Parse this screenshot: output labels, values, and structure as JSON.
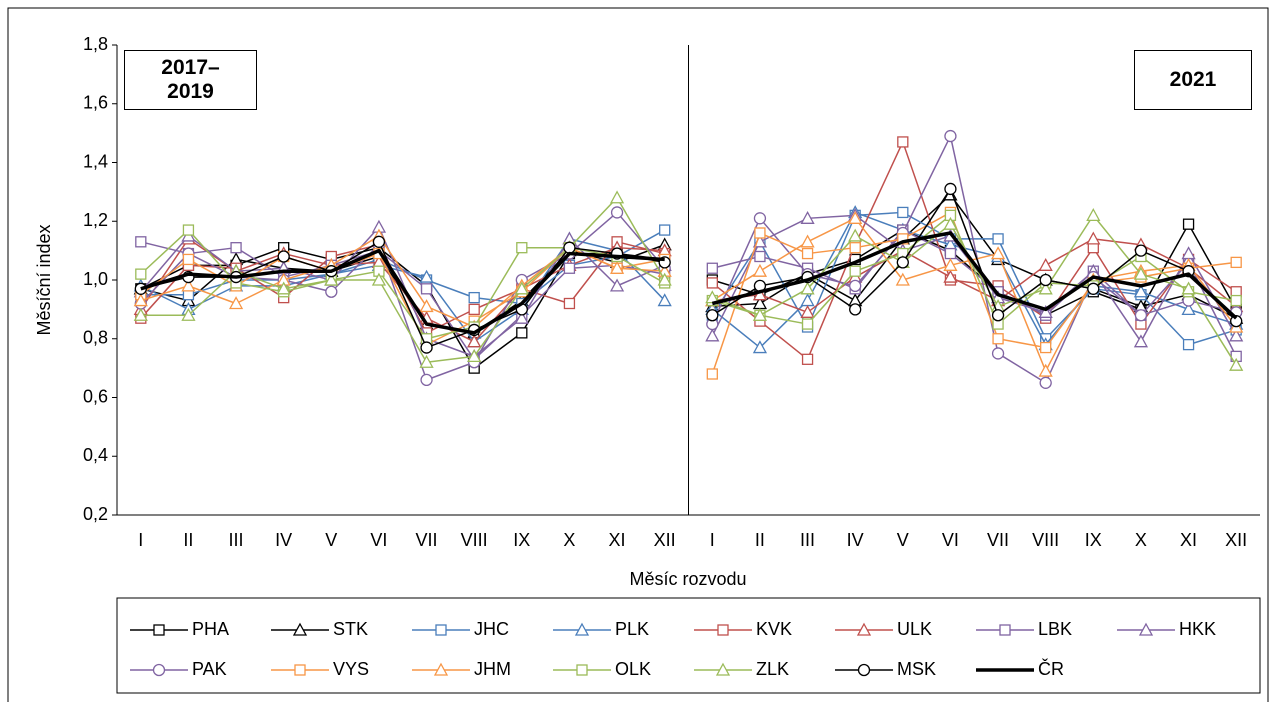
{
  "chart_data": {
    "type": "line",
    "y_label": "Měsíční index",
    "x_label": "Měsíc rozvodu",
    "annotations": [
      "2017–2019",
      "2021"
    ],
    "categories": [
      "I",
      "II",
      "III",
      "IV",
      "V",
      "VI",
      "VII",
      "VIII",
      "IX",
      "X",
      "XI",
      "XII",
      "I",
      "II",
      "III",
      "IV",
      "V",
      "VI",
      "VII",
      "VIII",
      "IX",
      "X",
      "XI",
      "XII"
    ],
    "ylim": [
      0.2,
      1.8
    ],
    "yticks": [
      {
        "value": 0.2,
        "label": "0,2"
      },
      {
        "value": 0.4,
        "label": "0,4"
      },
      {
        "value": 0.6,
        "label": "0,6"
      },
      {
        "value": 0.8,
        "label": "0,8"
      },
      {
        "value": 1.0,
        "label": "1,0"
      },
      {
        "value": 1.2,
        "label": "1,2"
      },
      {
        "value": 1.4,
        "label": "1,4"
      },
      {
        "value": 1.6,
        "label": "1,6"
      },
      {
        "value": 1.8,
        "label": "1,8"
      }
    ],
    "series": [
      {
        "name": "PHA",
        "color": "#000000",
        "marker": "square",
        "values": [
          0.97,
          1.05,
          1.05,
          1.11,
          1.07,
          1.11,
          0.98,
          0.7,
          0.82,
          1.09,
          1.09,
          1.07,
          1.0,
          0.95,
          1.02,
          1.07,
          1.17,
          1.1,
          0.96,
          0.88,
          0.96,
          0.9,
          1.19,
          0.9
        ]
      },
      {
        "name": "STK",
        "color": "#000000",
        "marker": "triangle",
        "values": [
          0.97,
          0.93,
          1.07,
          1.04,
          1.03,
          1.08,
          0.85,
          0.82,
          0.93,
          1.1,
          1.06,
          1.12,
          0.91,
          0.92,
          1.02,
          0.93,
          1.14,
          1.29,
          1.07,
          1.0,
          0.97,
          0.91,
          0.95,
          0.87
        ]
      },
      {
        "name": "JHC",
        "color": "#4a7ebb",
        "marker": "square",
        "values": [
          0.95,
          0.95,
          1.0,
          1.0,
          1.02,
          1.07,
          1.0,
          0.94,
          0.92,
          1.05,
          1.08,
          1.17,
          0.88,
          1.13,
          0.84,
          1.22,
          1.23,
          1.14,
          1.14,
          0.8,
          0.97,
          0.95,
          0.78,
          0.83
        ]
      },
      {
        "name": "PLK",
        "color": "#4a7ebb",
        "marker": "triangle",
        "values": [
          0.98,
          0.9,
          0.98,
          0.98,
          1.02,
          1.05,
          1.01,
          0.79,
          0.9,
          1.14,
          1.1,
          0.93,
          0.9,
          0.77,
          0.93,
          1.23,
          1.17,
          1.12,
          1.08,
          0.78,
          0.98,
          0.96,
          0.9,
          0.85
        ]
      },
      {
        "name": "KVK",
        "color": "#c0504d",
        "marker": "square",
        "values": [
          0.87,
          1.05,
          1.04,
          0.94,
          1.08,
          1.12,
          0.82,
          0.9,
          0.97,
          0.92,
          1.13,
          1.09,
          0.99,
          0.86,
          0.73,
          1.12,
          1.47,
          1.0,
          0.98,
          0.87,
          1.11,
          0.85,
          1.07,
          0.96
        ]
      },
      {
        "name": "ULK",
        "color": "#c0504d",
        "marker": "triangle",
        "values": [
          0.9,
          1.14,
          1.03,
          1.09,
          1.05,
          1.06,
          0.87,
          0.79,
          0.97,
          1.05,
          1.11,
          1.1,
          0.93,
          0.95,
          0.89,
          1.01,
          1.1,
          1.01,
          0.93,
          1.05,
          1.14,
          1.12,
          1.04,
          0.91
        ]
      },
      {
        "name": "LBK",
        "color": "#8064a2",
        "marker": "square",
        "values": [
          1.13,
          1.09,
          1.11,
          1.01,
          1.05,
          1.1,
          0.97,
          0.73,
          0.88,
          1.04,
          1.05,
          1.02,
          1.04,
          1.08,
          1.04,
          0.97,
          1.17,
          1.09,
          0.96,
          0.88,
          1.03,
          0.88,
          1.06,
          0.74
        ]
      },
      {
        "name": "HKK",
        "color": "#8064a2",
        "marker": "triangle",
        "values": [
          0.96,
          1.15,
          1.03,
          1.04,
          1.0,
          1.18,
          0.8,
          0.74,
          0.87,
          1.14,
          0.98,
          1.05,
          0.81,
          1.13,
          1.21,
          1.22,
          1.1,
          1.15,
          0.94,
          0.89,
          1.03,
          0.79,
          1.09,
          0.81
        ]
      },
      {
        "name": "PAK",
        "color": "#8064a2",
        "marker": "circle",
        "values": [
          0.92,
          1.09,
          1.01,
          1.0,
          0.96,
          1.12,
          0.66,
          0.72,
          1.0,
          1.09,
          1.23,
          1.04,
          0.85,
          1.21,
          1.02,
          0.98,
          1.16,
          1.49,
          0.75,
          0.65,
          1.01,
          0.88,
          0.93,
          0.89
        ]
      },
      {
        "name": "VYS",
        "color": "#f79646",
        "marker": "square",
        "values": [
          0.95,
          1.07,
          0.98,
          1.08,
          1.03,
          1.09,
          0.78,
          0.86,
          0.96,
          1.11,
          1.04,
          1.07,
          0.68,
          1.16,
          1.09,
          1.11,
          1.14,
          1.23,
          0.8,
          0.77,
          0.99,
          1.01,
          1.04,
          1.06
        ]
      },
      {
        "name": "JHM",
        "color": "#f79646",
        "marker": "triangle",
        "values": [
          0.93,
          0.98,
          0.92,
          1.0,
          1.05,
          1.15,
          0.91,
          0.84,
          0.98,
          1.11,
          1.04,
          1.03,
          0.93,
          1.03,
          1.13,
          1.21,
          1.0,
          1.05,
          1.09,
          0.69,
          1.0,
          1.03,
          1.05,
          0.84
        ]
      },
      {
        "name": "OLK",
        "color": "#9bbb59",
        "marker": "square",
        "values": [
          1.02,
          1.17,
          0.99,
          0.96,
          1.0,
          1.03,
          0.8,
          0.84,
          1.11,
          1.11,
          1.08,
          0.99,
          0.93,
          0.88,
          0.85,
          1.03,
          1.09,
          1.22,
          0.85,
          0.99,
          0.98,
          1.08,
          0.96,
          0.93
        ]
      },
      {
        "name": "ZLK",
        "color": "#9bbb59",
        "marker": "triangle",
        "values": [
          0.88,
          0.88,
          1.03,
          0.97,
          1.0,
          1.0,
          0.72,
          0.74,
          0.97,
          1.11,
          1.28,
          1.0,
          0.94,
          0.88,
          0.97,
          1.15,
          1.06,
          1.19,
          0.91,
          0.97,
          1.22,
          1.02,
          0.97,
          0.71
        ]
      },
      {
        "name": "MSK",
        "color": "#000000",
        "marker": "circle",
        "values": [
          0.97,
          1.01,
          1.01,
          1.08,
          1.03,
          1.13,
          0.77,
          0.83,
          0.9,
          1.11,
          1.09,
          1.06,
          0.88,
          0.98,
          1.01,
          0.9,
          1.06,
          1.31,
          0.88,
          1.0,
          0.97,
          1.1,
          1.03,
          0.86
        ]
      },
      {
        "name": "ČR",
        "color": "#000000",
        "marker": "none",
        "width": 3.5,
        "values": [
          0.97,
          1.02,
          1.01,
          1.03,
          1.03,
          1.1,
          0.85,
          0.82,
          0.92,
          1.09,
          1.08,
          1.07,
          0.92,
          0.96,
          1.0,
          1.06,
          1.13,
          1.16,
          0.95,
          0.9,
          1.01,
          0.98,
          1.02,
          0.87
        ]
      }
    ]
  }
}
